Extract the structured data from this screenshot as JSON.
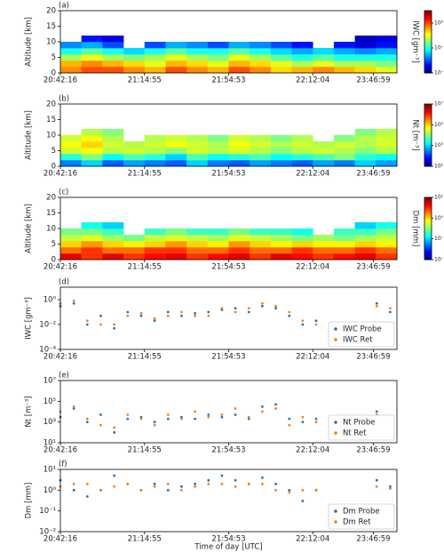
{
  "chart_data": [
    {
      "type": "heatmap",
      "panel_label": "(a)",
      "ylabel": "Altitude [km]",
      "colorbar_label": "IWC [gm⁻³]",
      "xlim": [
        0,
        1000
      ],
      "xticks": [
        {
          "value": 0,
          "label": "20:42:16"
        },
        {
          "value": 250,
          "label": "21:14:55"
        },
        {
          "value": 500,
          "label": "21:54:53"
        },
        {
          "value": 750,
          "label": "22:12:04"
        },
        {
          "value": 930,
          "label": "23:46:59"
        }
      ],
      "ylim": [
        0,
        20
      ],
      "yticks": [
        0,
        5,
        10,
        15,
        20
      ],
      "xbins": [
        0,
        62.5,
        125,
        187.5,
        250,
        312.5,
        375,
        437.5,
        500,
        562.5,
        625,
        687.5,
        750,
        812.5,
        875,
        937.5,
        1000
      ],
      "ybins": [
        0,
        2,
        4,
        6,
        8,
        10,
        12
      ],
      "z": [
        [
          0.5,
          1,
          1,
          0.5,
          0.3,
          1,
          0.5,
          0.3,
          1,
          0.5,
          0.2,
          0.3,
          0.5,
          0.3,
          0.2,
          0.1
        ],
        [
          0.3,
          0.5,
          0.3,
          0.2,
          0.1,
          0.3,
          0.2,
          0.1,
          0.3,
          0.2,
          0.1,
          0.05,
          0.1,
          0.05,
          0.05,
          0.03
        ],
        [
          0.05,
          0.1,
          0.05,
          0.03,
          0.05,
          0.1,
          0.05,
          0.03,
          0.1,
          0.05,
          0.02,
          0.01,
          0.02,
          0.01,
          0.01,
          0.01
        ],
        [
          0.01,
          0.02,
          0.01,
          0.005,
          0.01,
          0.02,
          0.01,
          0.01,
          0.02,
          0.01,
          0.005,
          0.003,
          0.005,
          0.003,
          0.002,
          0.003
        ],
        [
          0.002,
          0.003,
          0.001,
          null,
          0.001,
          0.003,
          0.002,
          0.001,
          0.003,
          0.002,
          0.001,
          0.0005,
          null,
          0.0005,
          0.0003,
          0.0005
        ],
        [
          null,
          0.0005,
          0.0003,
          null,
          null,
          null,
          null,
          null,
          null,
          null,
          null,
          null,
          null,
          null,
          0.0002,
          0.0003
        ]
      ],
      "color_scale": "log",
      "clim": [
        0.0001,
        10
      ],
      "cticks": [
        {
          "value": 0.0001,
          "label": "10⁻⁴"
        },
        {
          "value": 0.01,
          "label": "10⁻²"
        },
        {
          "value": 1,
          "label": "10⁰"
        }
      ]
    },
    {
      "type": "heatmap",
      "panel_label": "(b)",
      "ylabel": "Altitude [km]",
      "colorbar_label": "Nt [m⁻³]",
      "xlim": [
        0,
        1000
      ],
      "xticks": [
        {
          "value": 0,
          "label": "20:42:16"
        },
        {
          "value": 250,
          "label": "21:14:55"
        },
        {
          "value": 500,
          "label": "21:54:53"
        },
        {
          "value": 750,
          "label": "22:12:04"
        },
        {
          "value": 930,
          "label": "23:46:59"
        }
      ],
      "ylim": [
        0,
        20
      ],
      "yticks": [
        0,
        5,
        10,
        15,
        20
      ],
      "xbins": [
        0,
        62.5,
        125,
        187.5,
        250,
        312.5,
        375,
        437.5,
        500,
        562.5,
        625,
        687.5,
        750,
        812.5,
        875,
        937.5,
        1000
      ],
      "ybins": [
        0,
        2,
        4,
        6,
        8,
        10,
        12
      ],
      "z": [
        [
          300,
          1000,
          200,
          500,
          300,
          200,
          1000,
          300,
          200,
          500,
          300,
          200,
          500,
          300,
          1000,
          500
        ],
        [
          3000,
          10000,
          2000,
          5000,
          3000,
          1000,
          5000,
          2000,
          3000,
          5000,
          2000,
          3000,
          5000,
          10000,
          3000,
          2000
        ],
        [
          30000,
          50000,
          20000,
          30000,
          20000,
          10000,
          30000,
          20000,
          30000,
          20000,
          10000,
          20000,
          30000,
          20000,
          10000,
          20000
        ],
        [
          50000,
          100000,
          30000,
          20000,
          30000,
          50000,
          30000,
          20000,
          50000,
          30000,
          20000,
          30000,
          20000,
          30000,
          20000,
          30000
        ],
        [
          30000,
          50000,
          20000,
          null,
          20000,
          30000,
          20000,
          10000,
          30000,
          20000,
          10000,
          20000,
          null,
          10000,
          20000,
          30000
        ],
        [
          null,
          20000,
          10000,
          null,
          null,
          null,
          null,
          null,
          null,
          null,
          null,
          null,
          null,
          null,
          10000,
          20000
        ]
      ],
      "color_scale": "log",
      "clim": [
        10,
        10000000
      ],
      "cticks": [
        {
          "value": 10,
          "label": "10¹"
        },
        {
          "value": 1000,
          "label": "10³"
        },
        {
          "value": 100000,
          "label": "10⁵"
        },
        {
          "value": 10000000,
          "label": "10⁷"
        }
      ]
    },
    {
      "type": "heatmap",
      "panel_label": "(c)",
      "ylabel": "Altitude [km]",
      "colorbar_label": "Dm [mm]",
      "xlim": [
        0,
        1000
      ],
      "xticks": [
        {
          "value": 0,
          "label": "20:42:16"
        },
        {
          "value": 250,
          "label": "21:14:55"
        },
        {
          "value": 500,
          "label": "21:54:53"
        },
        {
          "value": 750,
          "label": "22:12:04"
        },
        {
          "value": 930,
          "label": "23:46:59"
        }
      ],
      "ylim": [
        0,
        20
      ],
      "yticks": [
        0,
        5,
        10,
        15,
        20
      ],
      "xbins": [
        0,
        62.5,
        125,
        187.5,
        250,
        312.5,
        375,
        437.5,
        500,
        562.5,
        625,
        687.5,
        750,
        812.5,
        875,
        937.5,
        1000
      ],
      "ybins": [
        0,
        2,
        4,
        6,
        8,
        10,
        12
      ],
      "z": [
        [
          5,
          3,
          5,
          3,
          4,
          5,
          3,
          4,
          5,
          3,
          5,
          4,
          3,
          4,
          5,
          3
        ],
        [
          2,
          3,
          2,
          2,
          3,
          3,
          2,
          2,
          3,
          2,
          2,
          3,
          2,
          2,
          3,
          2
        ],
        [
          1,
          1.5,
          1,
          0.8,
          1,
          1.5,
          1,
          0.8,
          1.5,
          1,
          0.8,
          1,
          0.8,
          0.8,
          1,
          0.8
        ],
        [
          0.5,
          0.6,
          0.4,
          0.3,
          0.5,
          0.6,
          0.5,
          0.4,
          0.6,
          0.5,
          0.4,
          0.3,
          0.4,
          0.3,
          0.4,
          0.5
        ],
        [
          0.3,
          0.3,
          0.2,
          null,
          0.2,
          0.3,
          0.2,
          0.2,
          0.3,
          0.2,
          0.2,
          0.15,
          null,
          0.2,
          0.2,
          0.3
        ],
        [
          null,
          0.15,
          0.1,
          null,
          null,
          null,
          null,
          null,
          null,
          null,
          null,
          null,
          null,
          null,
          0.1,
          0.15
        ]
      ],
      "color_scale": "log",
      "clim": [
        0.01,
        10
      ],
      "cticks": [
        {
          "value": 0.01,
          "label": "10⁻²"
        },
        {
          "value": 0.1,
          "label": "10⁻¹"
        },
        {
          "value": 1,
          "label": "10⁰"
        },
        {
          "value": 10,
          "label": "10¹"
        }
      ]
    },
    {
      "type": "scatter",
      "panel_label": "(d)",
      "ylabel": "IWC [gm⁻³]",
      "yscale": "log",
      "legend": "lower right",
      "xlim": [
        0,
        1000
      ],
      "xticks": [
        {
          "value": 0,
          "label": "20:42:16"
        },
        {
          "value": 250,
          "label": "21:14:55"
        },
        {
          "value": 500,
          "label": "21:54:53"
        },
        {
          "value": 750,
          "label": "22:12:04"
        },
        {
          "value": 930,
          "label": "23:46:59"
        }
      ],
      "ylim": [
        0.0001,
        10
      ],
      "yticks": [
        {
          "value": 0.0001,
          "label": "10⁻⁴"
        },
        {
          "value": 0.01,
          "label": "10⁻²"
        },
        {
          "value": 1,
          "label": "10⁰"
        }
      ],
      "x": [
        0,
        40,
        80,
        120,
        160,
        200,
        240,
        280,
        320,
        360,
        400,
        440,
        480,
        520,
        560,
        600,
        640,
        680,
        720,
        760,
        940,
        980
      ],
      "series": [
        {
          "name": "IWC Probe",
          "color": "#1f77b4",
          "values": [
            0.3,
            0.5,
            0.01,
            0.05,
            0.005,
            0.1,
            0.05,
            0.02,
            0.1,
            0.05,
            0.08,
            0.1,
            0.15,
            0.2,
            0.1,
            0.3,
            0.2,
            0.05,
            0.01,
            0.02,
            0.5,
            0.1
          ]
        },
        {
          "name": "IWC Ret",
          "color": "#ff7f0e",
          "values": [
            0.5,
            0.8,
            0.02,
            0.01,
            0.01,
            0.05,
            0.08,
            0.03,
            0.05,
            0.1,
            0.05,
            0.05,
            0.2,
            0.1,
            0.2,
            0.5,
            0.3,
            0.1,
            0.02,
            0.01,
            0.3,
            0.2
          ]
        }
      ]
    },
    {
      "type": "scatter",
      "panel_label": "(e)",
      "ylabel": "Nt [m⁻³]",
      "yscale": "log",
      "legend": "lower right",
      "xlim": [
        0,
        1000
      ],
      "xticks": [
        {
          "value": 0,
          "label": "20:42:16"
        },
        {
          "value": 250,
          "label": "21:14:55"
        },
        {
          "value": 500,
          "label": "21:54:53"
        },
        {
          "value": 750,
          "label": "22:12:04"
        },
        {
          "value": 930,
          "label": "23:46:59"
        }
      ],
      "ylim": [
        10,
        10000000
      ],
      "yticks": [
        {
          "value": 10,
          "label": "10¹"
        },
        {
          "value": 1000,
          "label": "10³"
        },
        {
          "value": 100000,
          "label": "10⁵"
        },
        {
          "value": 10000000,
          "label": "10⁷"
        }
      ],
      "x": [
        0,
        40,
        80,
        120,
        160,
        200,
        240,
        280,
        320,
        360,
        400,
        440,
        480,
        520,
        560,
        600,
        640,
        680,
        720,
        760,
        940,
        980
      ],
      "series": [
        {
          "name": "Nt Probe",
          "color": "#1f77b4",
          "values": [
            3000,
            20000,
            1000,
            5000,
            100,
            2000,
            3000,
            1000,
            2000,
            3000,
            2000,
            5000,
            3000,
            5000,
            2000,
            30000,
            50000,
            2000,
            1000,
            2000,
            10000,
            3000
          ]
        },
        {
          "name": "Nt Ret",
          "color": "#ff7f0e",
          "values": [
            10000,
            30000,
            2000,
            500,
            300,
            5000,
            2000,
            500,
            5000,
            2000,
            10000,
            3000,
            5000,
            20000,
            3000,
            10000,
            20000,
            500,
            3000,
            1000,
            5000,
            2000
          ]
        }
      ]
    },
    {
      "type": "scatter",
      "panel_label": "(f)",
      "ylabel": "Dm [mm]",
      "xlabel": "Time of day [UTC]",
      "yscale": "log",
      "legend": "lower right",
      "xlim": [
        0,
        1000
      ],
      "xticks": [
        {
          "value": 0,
          "label": "20:42:16"
        },
        {
          "value": 250,
          "label": "21:14:55"
        },
        {
          "value": 500,
          "label": "21:54:53"
        },
        {
          "value": 750,
          "label": "22:12:04"
        },
        {
          "value": 930,
          "label": "23:46:59"
        }
      ],
      "ylim": [
        0.01,
        10
      ],
      "yticks": [
        {
          "value": 0.01,
          "label": "10⁻²"
        },
        {
          "value": 0.1,
          "label": "10⁻¹"
        },
        {
          "value": 1,
          "label": "10⁰"
        },
        {
          "value": 10,
          "label": "10¹"
        }
      ],
      "x": [
        0,
        40,
        80,
        120,
        160,
        200,
        240,
        280,
        320,
        360,
        400,
        440,
        480,
        520,
        560,
        600,
        640,
        680,
        720,
        760,
        940,
        980
      ],
      "series": [
        {
          "name": "Dm Probe",
          "color": "#1f77b4",
          "values": [
            3,
            1,
            0.5,
            1,
            5,
            2,
            1,
            2,
            1,
            1.5,
            2,
            3,
            5,
            3,
            2,
            4,
            2,
            1,
            0.3,
            1,
            3,
            1.5
          ]
        },
        {
          "name": "Dm Ret",
          "color": "#ff7f0e",
          "values": [
            1.5,
            2,
            2,
            1,
            1.5,
            2,
            1,
            1.5,
            2,
            1,
            1.5,
            2,
            2,
            1.5,
            2,
            2,
            1,
            0.8,
            1,
            1,
            1.5,
            1.2
          ]
        }
      ]
    }
  ]
}
